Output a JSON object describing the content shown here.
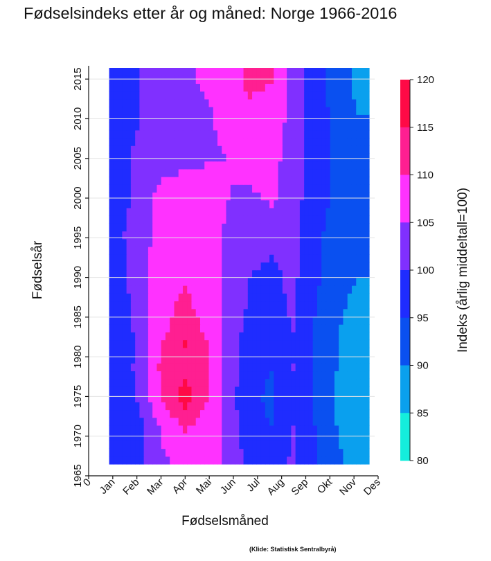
{
  "title": "Fødselsindeks etter år og måned: Norge 1966-2016",
  "source": "(Klide: Statistisk Sentralbyrå)",
  "chart_data": {
    "type": "heatmap",
    "title": "Fødselsindeks etter år og måned: Norge 1966-2016",
    "xlabel": "Fødselsmåned",
    "ylabel": "Fødselsår",
    "colorbar_label": "Indeks (årlig middeltall=100)",
    "x_ticks": [
      "0",
      "Jan",
      "Feb",
      "Mar",
      "Apr",
      "Mai",
      "Jun",
      "Jul",
      "Aug",
      "Sep",
      "Okt",
      "Nov",
      "Des"
    ],
    "y_ticks": [
      1965,
      1970,
      1975,
      1980,
      1985,
      1990,
      1995,
      2000,
      2005,
      2010,
      2015
    ],
    "ylim": [
      1965,
      2016.5
    ],
    "grid": true,
    "colorbar_ticks": [
      120,
      115,
      110,
      105,
      100,
      95,
      90,
      85,
      80
    ],
    "color_bins": [
      {
        "range": [
          115,
          120
        ],
        "color": "#ff0a46"
      },
      {
        "range": [
          110,
          115
        ],
        "color": "#ff1f91"
      },
      {
        "range": [
          105,
          110
        ],
        "color": "#ff32ff"
      },
      {
        "range": [
          100,
          105
        ],
        "color": "#8030ff"
      },
      {
        "range": [
          95,
          100
        ],
        "color": "#1f2cff"
      },
      {
        "range": [
          90,
          95
        ],
        "color": "#0a50f0"
      },
      {
        "range": [
          85,
          90
        ],
        "color": "#0aa0ee"
      },
      {
        "range": [
          80,
          85
        ],
        "color": "#14eedc"
      }
    ],
    "months": [
      "Jan",
      "Feb",
      "Mar",
      "Apr",
      "Mai",
      "Jun",
      "Jul",
      "Aug",
      "Sep",
      "Okt",
      "Nov",
      "Des"
    ],
    "profiles": [
      {
        "year": 1966,
        "values": [
          95,
          99,
          104,
          108,
          108,
          104,
          98,
          96,
          101,
          95,
          91,
          88
        ]
      },
      {
        "year": 1970,
        "values": [
          96,
          99,
          106,
          110,
          108,
          103,
          97,
          95,
          100,
          95,
          90,
          87
        ]
      },
      {
        "year": 1974,
        "values": [
          96,
          101,
          111,
          117,
          110,
          102,
          96,
          94,
          99,
          94,
          89,
          85
        ]
      },
      {
        "year": 1978,
        "values": [
          97,
          102,
          112,
          114,
          111,
          103,
          97,
          95,
          100,
          94,
          90,
          86
        ]
      },
      {
        "year": 1981,
        "values": [
          96,
          102,
          110,
          115,
          110,
          103,
          97,
          95,
          99,
          94,
          90,
          87
        ]
      },
      {
        "year": 1985,
        "values": [
          97,
          103,
          108,
          112,
          108,
          103,
          99,
          98,
          101,
          95,
          91,
          88
        ]
      },
      {
        "year": 1990,
        "values": [
          98,
          104,
          108,
          109,
          107,
          104,
          100,
          99,
          101,
          96,
          92,
          90
        ]
      },
      {
        "year": 1995,
        "values": [
          99,
          104,
          106,
          108,
          107,
          104,
          102,
          101,
          101,
          96,
          93,
          91
        ]
      },
      {
        "year": 2000,
        "values": [
          98,
          102,
          107,
          108,
          109,
          105,
          104,
          106,
          102,
          97,
          94,
          92
        ]
      },
      {
        "year": 2005,
        "values": [
          99,
          101,
          102,
          104,
          104,
          105,
          108,
          107,
          102,
          97,
          94,
          91
        ]
      },
      {
        "year": 2010,
        "values": [
          98,
          100,
          102,
          103,
          104,
          107,
          109,
          108,
          103,
          97,
          94,
          90
        ]
      },
      {
        "year": 2015,
        "values": [
          98,
          100,
          102,
          104,
          106,
          108,
          111,
          110,
          103,
          97,
          93,
          88
        ]
      }
    ]
  }
}
